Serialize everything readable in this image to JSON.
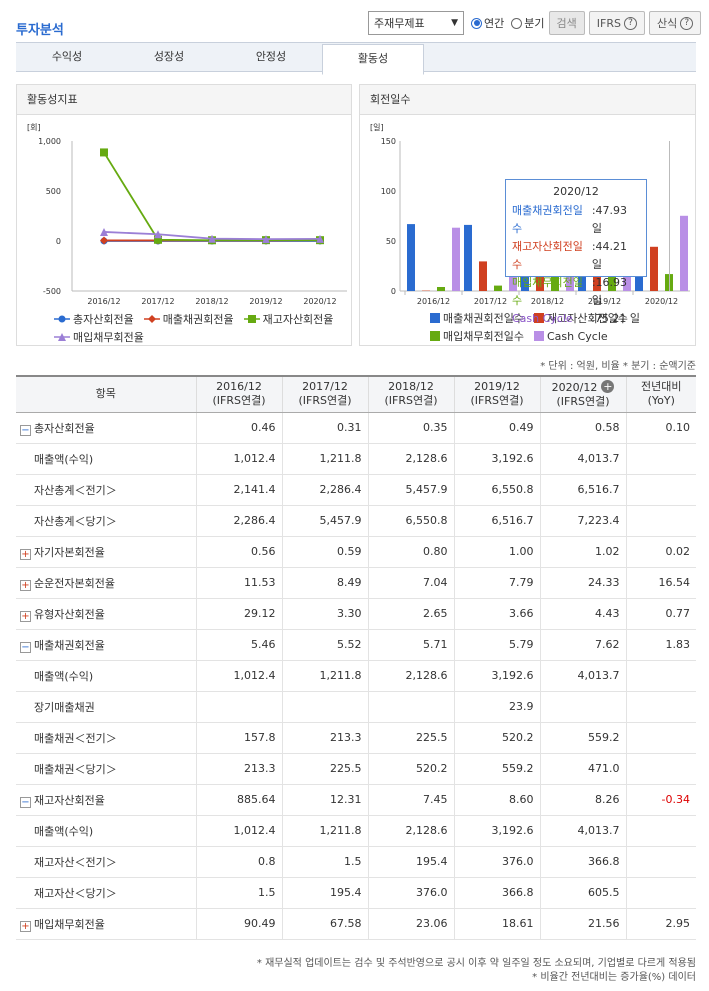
{
  "page_title": "투자분석",
  "controls": {
    "select_value": "주재무제표",
    "radio_annual": "연간",
    "radio_quarter": "분기",
    "search": "검색",
    "ifrs": "IFRS",
    "formula": "산식"
  },
  "tabs": [
    "수익성",
    "성장성",
    "안정성",
    "활동성"
  ],
  "active_tab": "활동성",
  "left_chart": {
    "title": "활동성지표",
    "unit": "[회]",
    "yticks": [
      "1,000",
      "500",
      "0",
      "-500"
    ],
    "legend": [
      "총자산회전율",
      "매출채권회전율",
      "재고자산회전율",
      "매입채무회전율"
    ]
  },
  "right_chart": {
    "title": "회전일수",
    "unit": "[일]",
    "yticks": [
      "150",
      "100",
      "50",
      "0"
    ],
    "legend": [
      "매출채권회전일수",
      "재고자산회전일수",
      "매입채무회전일수",
      "Cash Cycle"
    ]
  },
  "tooltip": {
    "title": "2020/12",
    "rows": [
      {
        "label": "매출채권회전일수",
        "value": ":47.93 일",
        "color": "#2a6bd0"
      },
      {
        "label": "재고자산회전일수",
        "value": ":44.21 일",
        "color": "#d04020"
      },
      {
        "label": "매입채무회전일수",
        "value": ":16.93 일",
        "color": "#66aa11"
      },
      {
        "label": "Cash Cycle",
        "value": ":75.21 일",
        "color": "#8a55c8"
      }
    ]
  },
  "chart_data": [
    {
      "type": "line",
      "title": "활동성지표",
      "ylabel": "[회]",
      "categories": [
        "2016/12",
        "2017/12",
        "2018/12",
        "2019/12",
        "2020/12"
      ],
      "ylim": [
        -500,
        1000
      ],
      "series": [
        {
          "name": "총자산회전율",
          "values": [
            0.46,
            0.31,
            0.35,
            0.49,
            0.58
          ],
          "color": "#2a6bd0"
        },
        {
          "name": "매출채권회전율",
          "values": [
            5.46,
            5.52,
            5.71,
            5.79,
            7.62
          ],
          "color": "#d04020"
        },
        {
          "name": "재고자산회전율",
          "values": [
            885.64,
            12.31,
            7.45,
            8.6,
            8.26
          ],
          "color": "#66aa11"
        },
        {
          "name": "매입채무회전율",
          "values": [
            90.49,
            67.58,
            23.06,
            18.61,
            21.56
          ],
          "color": "#9b7fd6"
        }
      ]
    },
    {
      "type": "bar",
      "title": "회전일수",
      "ylabel": "[일]",
      "categories": [
        "2016/12",
        "2017/12",
        "2018/12",
        "2019/12",
        "2020/12"
      ],
      "ylim": [
        0,
        150
      ],
      "series": [
        {
          "name": "매출채권회전일수",
          "values": [
            66.9,
            66.1,
            63.9,
            63.0,
            47.93
          ],
          "color": "#2a6bd0"
        },
        {
          "name": "재고자산회전일수",
          "values": [
            0.4,
            29.6,
            49.0,
            42.4,
            44.21
          ],
          "color": "#d04020"
        },
        {
          "name": "매입채무회전일수",
          "values": [
            4.0,
            5.4,
            15.8,
            19.6,
            16.93
          ],
          "color": "#66aa11"
        },
        {
          "name": "Cash Cycle",
          "values": [
            63.3,
            90.3,
            97.1,
            85.8,
            75.21
          ],
          "color": "#b98fe6"
        }
      ]
    }
  ],
  "note": "* 단위 : 억원, 비율   * 분기 : 순액기준",
  "table": {
    "headers": [
      "항목",
      "2016/12\n(IFRS연결)",
      "2017/12\n(IFRS연결)",
      "2018/12\n(IFRS연결)",
      "2019/12\n(IFRS연결)",
      "2020/12\n(IFRS연결)",
      "전년대비\n(YoY)"
    ],
    "rows": [
      {
        "label": "총자산회전율",
        "toggle": "minus",
        "vals": [
          "0.46",
          "0.31",
          "0.35",
          "0.49",
          "0.58",
          "0.10"
        ]
      },
      {
        "label": "매출액(수익)",
        "sub": true,
        "vals": [
          "1,012.4",
          "1,211.8",
          "2,128.6",
          "3,192.6",
          "4,013.7",
          ""
        ]
      },
      {
        "label": "자산총계＜전기＞",
        "sub": true,
        "vals": [
          "2,141.4",
          "2,286.4",
          "5,457.9",
          "6,550.8",
          "6,516.7",
          ""
        ]
      },
      {
        "label": "자산총계＜당기＞",
        "sub": true,
        "vals": [
          "2,286.4",
          "5,457.9",
          "6,550.8",
          "6,516.7",
          "7,223.4",
          ""
        ]
      },
      {
        "label": "자기자본회전율",
        "toggle": "plus",
        "vals": [
          "0.56",
          "0.59",
          "0.80",
          "1.00",
          "1.02",
          "0.02"
        ]
      },
      {
        "label": "순운전자본회전율",
        "toggle": "plus",
        "vals": [
          "11.53",
          "8.49",
          "7.04",
          "7.79",
          "24.33",
          "16.54"
        ]
      },
      {
        "label": "유형자산회전율",
        "toggle": "plus",
        "vals": [
          "29.12",
          "3.30",
          "2.65",
          "3.66",
          "4.43",
          "0.77"
        ]
      },
      {
        "label": "매출채권회전율",
        "toggle": "minus",
        "vals": [
          "5.46",
          "5.52",
          "5.71",
          "5.79",
          "7.62",
          "1.83"
        ]
      },
      {
        "label": "매출액(수익)",
        "sub": true,
        "vals": [
          "1,012.4",
          "1,211.8",
          "2,128.6",
          "3,192.6",
          "4,013.7",
          ""
        ]
      },
      {
        "label": "장기매출채권",
        "sub": true,
        "vals": [
          "",
          "",
          "",
          "23.9",
          "",
          ""
        ]
      },
      {
        "label": "매출채권＜전기＞",
        "sub": true,
        "vals": [
          "157.8",
          "213.3",
          "225.5",
          "520.2",
          "559.2",
          ""
        ]
      },
      {
        "label": "매출채권＜당기＞",
        "sub": true,
        "vals": [
          "213.3",
          "225.5",
          "520.2",
          "559.2",
          "471.0",
          ""
        ]
      },
      {
        "label": "재고자산회전율",
        "toggle": "minus",
        "vals": [
          "885.64",
          "12.31",
          "7.45",
          "8.60",
          "8.26",
          "-0.34"
        ]
      },
      {
        "label": "매출액(수익)",
        "sub": true,
        "vals": [
          "1,012.4",
          "1,211.8",
          "2,128.6",
          "3,192.6",
          "4,013.7",
          ""
        ]
      },
      {
        "label": "재고자산＜전기＞",
        "sub": true,
        "vals": [
          "0.8",
          "1.5",
          "195.4",
          "376.0",
          "366.8",
          ""
        ]
      },
      {
        "label": "재고자산＜당기＞",
        "sub": true,
        "vals": [
          "1.5",
          "195.4",
          "376.0",
          "366.8",
          "605.5",
          ""
        ]
      },
      {
        "label": "매입채무회전율",
        "toggle": "plus",
        "vals": [
          "90.49",
          "67.58",
          "23.06",
          "18.61",
          "21.56",
          "2.95"
        ]
      }
    ]
  },
  "footer": [
    "* 재무실적 업데이트는 검수 및 주석반영으로 공시 이후 약 일주일 정도 소요되며, 기업별로 다르게 적용됨",
    "* 비율간 전년대비는 증가율(%) 데이터"
  ]
}
